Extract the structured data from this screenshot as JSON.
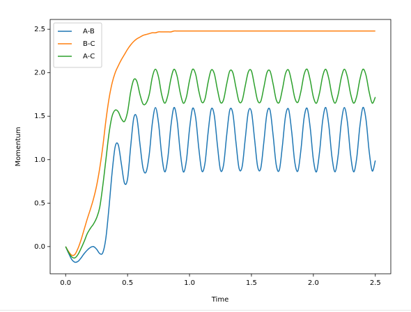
{
  "chart_data": {
    "type": "line",
    "xlabel": "Time",
    "ylabel": "Momentum",
    "x": [
      0,
      0.025,
      0.05,
      0.075,
      0.1,
      0.125,
      0.15,
      0.175,
      0.2,
      0.225,
      0.25,
      0.275,
      0.3,
      0.325,
      0.35,
      0.375,
      0.4,
      0.425,
      0.45,
      0.475,
      0.5,
      0.525,
      0.55,
      0.575,
      0.6,
      0.625,
      0.65,
      0.675,
      0.7,
      0.725,
      0.75,
      0.775,
      0.8,
      0.825,
      0.85,
      0.875,
      0.9,
      0.925,
      0.95,
      0.975,
      1.0,
      1.025,
      1.05,
      1.075,
      1.1,
      1.125,
      1.15,
      1.175,
      1.2,
      1.225,
      1.25,
      1.275,
      1.3,
      1.325,
      1.35,
      1.375,
      1.4,
      1.425,
      1.45,
      1.475,
      1.5,
      1.525,
      1.55,
      1.575,
      1.6,
      1.625,
      1.65,
      1.675,
      1.7,
      1.725,
      1.75,
      1.775,
      1.8,
      1.825,
      1.85,
      1.875,
      1.9,
      1.925,
      1.95,
      1.975,
      2.0,
      2.025,
      2.05,
      2.075,
      2.1,
      2.125,
      2.15,
      2.175,
      2.2,
      2.225,
      2.25,
      2.275,
      2.3,
      2.325,
      2.35,
      2.375,
      2.4,
      2.425,
      2.45,
      2.475,
      2.5
    ],
    "series": [
      {
        "name": "A-B",
        "color": "#1f77b4",
        "values": [
          0,
          -0.08,
          -0.15,
          -0.18,
          -0.17,
          -0.13,
          -0.08,
          -0.04,
          -0.01,
          0,
          -0.03,
          -0.08,
          -0.07,
          0.1,
          0.45,
          0.85,
          1.15,
          1.17,
          0.95,
          0.73,
          0.78,
          1.15,
          1.48,
          1.48,
          1.18,
          0.9,
          0.86,
          1.06,
          1.42,
          1.6,
          1.42,
          1.06,
          0.86,
          1.02,
          1.39,
          1.6,
          1.45,
          1.09,
          0.86,
          0.99,
          1.35,
          1.59,
          1.48,
          1.13,
          0.87,
          0.96,
          1.31,
          1.58,
          1.51,
          1.17,
          0.88,
          0.94,
          1.28,
          1.57,
          1.53,
          1.2,
          0.9,
          0.92,
          1.24,
          1.55,
          1.55,
          1.24,
          0.92,
          0.9,
          1.2,
          1.53,
          1.57,
          1.28,
          0.94,
          0.88,
          1.16,
          1.5,
          1.58,
          1.32,
          0.97,
          0.87,
          1.12,
          1.48,
          1.59,
          1.36,
          1.0,
          0.86,
          1.09,
          1.45,
          1.6,
          1.39,
          1.03,
          0.86,
          1.05,
          1.42,
          1.6,
          1.43,
          1.06,
          0.86,
          1.02,
          1.38,
          1.6,
          1.46,
          1.1,
          0.87,
          0.99
        ]
      },
      {
        "name": "B-C",
        "color": "#ff7f0e",
        "values": [
          0,
          -0.06,
          -0.1,
          -0.09,
          -0.02,
          0.08,
          0.2,
          0.32,
          0.43,
          0.55,
          0.7,
          0.9,
          1.15,
          1.45,
          1.7,
          1.88,
          2.0,
          2.08,
          2.15,
          2.21,
          2.27,
          2.32,
          2.36,
          2.39,
          2.41,
          2.43,
          2.44,
          2.45,
          2.46,
          2.46,
          2.47,
          2.47,
          2.47,
          2.47,
          2.47,
          2.48,
          2.48,
          2.48,
          2.48,
          2.48,
          2.48,
          2.48,
          2.48,
          2.48,
          2.48,
          2.48,
          2.48,
          2.48,
          2.48,
          2.48,
          2.48,
          2.48,
          2.48,
          2.48,
          2.48,
          2.48,
          2.48,
          2.48,
          2.48,
          2.48,
          2.48,
          2.48,
          2.48,
          2.48,
          2.48,
          2.48,
          2.48,
          2.48,
          2.48,
          2.48,
          2.48,
          2.48,
          2.48,
          2.48,
          2.48,
          2.48,
          2.48,
          2.48,
          2.48,
          2.48,
          2.48,
          2.48,
          2.48,
          2.48,
          2.48,
          2.48,
          2.48,
          2.48,
          2.48,
          2.48,
          2.48,
          2.48,
          2.48,
          2.48,
          2.48,
          2.48,
          2.48,
          2.48,
          2.48,
          2.48,
          2.48
        ]
      },
      {
        "name": "A-C",
        "color": "#2ca02c",
        "values": [
          0,
          -0.07,
          -0.12,
          -0.13,
          -0.09,
          -0.02,
          0.06,
          0.15,
          0.21,
          0.26,
          0.33,
          0.45,
          0.7,
          1.0,
          1.3,
          1.5,
          1.57,
          1.55,
          1.47,
          1.44,
          1.55,
          1.78,
          1.92,
          1.9,
          1.75,
          1.64,
          1.65,
          1.75,
          1.95,
          2.04,
          1.95,
          1.75,
          1.65,
          1.74,
          1.93,
          2.04,
          1.96,
          1.77,
          1.65,
          1.72,
          1.91,
          2.04,
          1.98,
          1.79,
          1.66,
          1.7,
          1.89,
          2.03,
          1.99,
          1.81,
          1.66,
          1.69,
          1.87,
          2.02,
          2.0,
          1.83,
          1.67,
          1.68,
          1.85,
          2.01,
          2.02,
          1.85,
          1.68,
          1.67,
          1.83,
          2.0,
          2.02,
          1.87,
          1.69,
          1.66,
          1.81,
          1.99,
          2.03,
          1.89,
          1.71,
          1.66,
          1.79,
          1.98,
          2.04,
          1.91,
          1.72,
          1.65,
          1.77,
          1.96,
          2.04,
          1.93,
          1.74,
          1.65,
          1.75,
          1.94,
          2.04,
          1.95,
          1.76,
          1.65,
          1.73,
          1.92,
          2.04,
          1.97,
          1.78,
          1.65,
          1.72
        ]
      }
    ],
    "xlim": [
      -0.125,
      2.625
    ],
    "ylim": [
      -0.313,
      2.613
    ],
    "xticks": [
      {
        "value": 0,
        "label": "0.0"
      },
      0.5,
      {
        "value": 1,
        "label": "1.0"
      },
      1.5,
      {
        "value": 2,
        "label": "2.0"
      },
      2.5
    ],
    "yticks": [
      {
        "value": 0,
        "label": "0.0"
      },
      0.5,
      {
        "value": 1,
        "label": "1.0"
      },
      1.5,
      {
        "value": 2,
        "label": "2.0"
      },
      2.5
    ],
    "legend": "upper left",
    "grid": false
  }
}
